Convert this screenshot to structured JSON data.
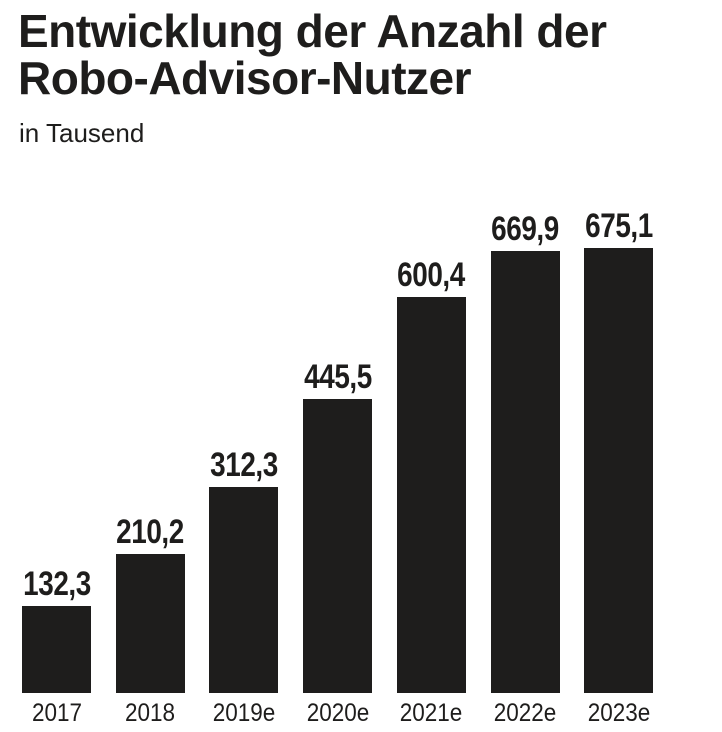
{
  "chart_data": {
    "type": "bar",
    "title": "Entwicklung der Anzahl der Robo-Advisor-Nutzer",
    "title_lines": [
      "Entwicklung der Anzahl der",
      "Robo-Advisor-Nutzer"
    ],
    "subtitle": "in Tausend",
    "categories": [
      "2017",
      "2018",
      "2019e",
      "2020e",
      "2021e",
      "2022e",
      "2023e"
    ],
    "values": [
      132.3,
      210.2,
      312.3,
      445.5,
      600.4,
      669.9,
      675.1
    ],
    "value_labels": [
      "132,3",
      "210,2",
      "312,3",
      "445,5",
      "600,4",
      "669,9",
      "675,1"
    ],
    "xlabel": "",
    "ylabel": "",
    "ylim": [
      0,
      675.1
    ],
    "grid": false,
    "colors": {
      "bar": "#1e1d1c",
      "text": "#1e1d1c"
    }
  }
}
